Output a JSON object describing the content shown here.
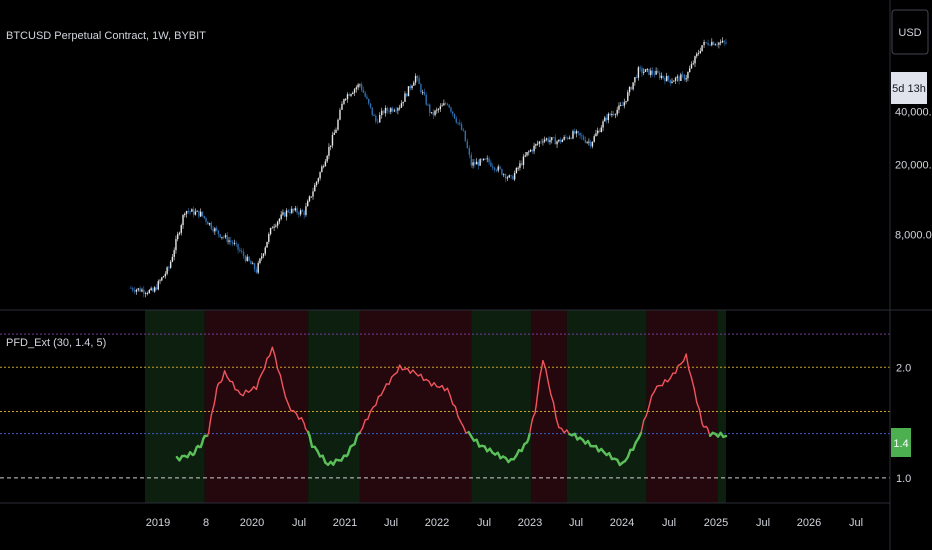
{
  "colors": {
    "background": "#000000",
    "candle_up": "#e9e9e9",
    "candle_down": "#2f6fb3",
    "indicator_high": "#f0545c",
    "indicator_low": "#5cbf5a",
    "level_top": "#7a3b99",
    "level_upper": "#c9a227",
    "level_mid": "#c9a227",
    "level_base": "#3b5bc9",
    "level_bottom": "#cfcfcf",
    "zone_green": "#0d1f0f",
    "zone_red": "#24080d",
    "axis_text": "#d1d4dc"
  },
  "chart_data": [
    {
      "type": "candlestick",
      "title": "BTCUSD Perpetual Contract, 1W, BYBIT",
      "y_scale": "log",
      "y_ticks": [
        "40,000.0",
        "20,000.0",
        "8,000.0"
      ],
      "y_tick_values": [
        40000,
        20000,
        8000
      ],
      "currency_label": "USD",
      "countdown_label": "5d 13h",
      "x_tick_labels": [
        "2019",
        "8",
        "2020",
        "Jul",
        "2021",
        "Jul",
        "2022",
        "Jul",
        "2023",
        "Jul",
        "2024",
        "Jul",
        "2025",
        "Jul",
        "2026",
        "Jul"
      ],
      "series": [
        {
          "name": "BTCUSD",
          "x": [
            "2018-11",
            "2019-02",
            "2019-04",
            "2019-06",
            "2019-08",
            "2019-10",
            "2019-12",
            "2020-03",
            "2020-05",
            "2020-07",
            "2020-09",
            "2020-11",
            "2021-01",
            "2021-02",
            "2021-04",
            "2021-06",
            "2021-07",
            "2021-09",
            "2021-11",
            "2022-01",
            "2022-03",
            "2022-05",
            "2022-06",
            "2022-08",
            "2022-11",
            "2023-01",
            "2023-03",
            "2023-05",
            "2023-07",
            "2023-09",
            "2023-11",
            "2024-01",
            "2024-03",
            "2024-05",
            "2024-07",
            "2024-09",
            "2024-11",
            "2024-12",
            "2025-02"
          ],
          "close": [
            4000,
            3800,
            5200,
            11000,
            10500,
            8300,
            7200,
            5000,
            9000,
            11000,
            10700,
            18000,
            32000,
            48000,
            57000,
            35000,
            40000,
            43000,
            63000,
            38000,
            45000,
            30000,
            20000,
            21000,
            16500,
            23000,
            28000,
            27000,
            30000,
            26500,
            37000,
            43000,
            68000,
            66000,
            60000,
            63000,
            95000,
            99000,
            97000
          ]
        }
      ]
    },
    {
      "type": "line",
      "title": "PFD_Ext (30, 1.4, 5)",
      "y_ticks": [
        "2.0",
        "1.4",
        "1.0"
      ],
      "y_tick_values": [
        2.0,
        1.4,
        1.0
      ],
      "levels": [
        2.3,
        2.0,
        1.6,
        1.4,
        1.0
      ],
      "current_value": "1.4",
      "current_value_number": 1.4,
      "series": [
        {
          "name": "PFD_Ext",
          "x": [
            "2019-05",
            "2019-07",
            "2019-08",
            "2019-09",
            "2019-10",
            "2019-11",
            "2020-01",
            "2020-03",
            "2020-05",
            "2020-07",
            "2020-09",
            "2020-10",
            "2020-12",
            "2021-02",
            "2021-03",
            "2021-05",
            "2021-07",
            "2021-09",
            "2021-11",
            "2022-01",
            "2022-03",
            "2022-05",
            "2022-07",
            "2022-09",
            "2022-11",
            "2023-01",
            "2023-02",
            "2023-03",
            "2023-05",
            "2023-07",
            "2023-09",
            "2023-11",
            "2024-01",
            "2024-03",
            "2024-05",
            "2024-07",
            "2024-09",
            "2024-11",
            "2024-12",
            "2025-02"
          ],
          "y": [
            1.17,
            1.22,
            1.3,
            1.42,
            1.8,
            1.95,
            1.75,
            1.82,
            2.18,
            1.65,
            1.5,
            1.3,
            1.12,
            1.18,
            1.28,
            1.55,
            1.8,
            2.0,
            1.95,
            1.85,
            1.8,
            1.45,
            1.3,
            1.22,
            1.15,
            1.32,
            1.6,
            2.08,
            1.45,
            1.38,
            1.3,
            1.22,
            1.12,
            1.35,
            1.8,
            1.9,
            2.1,
            1.5,
            1.4,
            1.38
          ],
          "threshold": 1.4
        }
      ]
    }
  ]
}
